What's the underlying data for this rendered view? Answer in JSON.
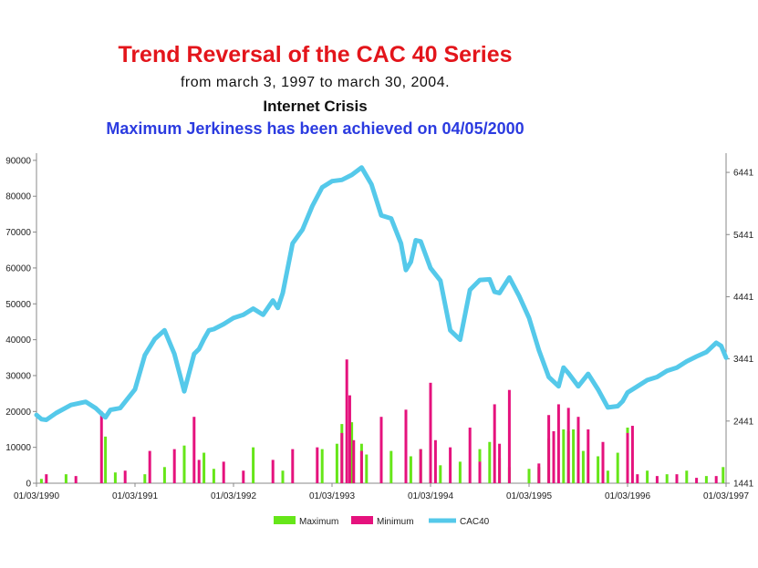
{
  "header": {
    "title": "Trend Reversal of the CAC 40 Series",
    "subtitle": "from   march 3,  1997  to  march 30,  2004.",
    "heading": "Internet Crisis",
    "note": "Maximum  Jerkiness  has been achieved on 04/05/2000"
  },
  "colors": {
    "title": "#e3151b",
    "note": "#2b3be0",
    "maximum": "#66e619",
    "minimum": "#e5127d",
    "cac40": "#55c9ea"
  },
  "chart_data": {
    "type": "line",
    "title": "Trend Reversal of the CAC 40 Series",
    "x_tick_labels": [
      "01/03/1990",
      "01/03/1991",
      "01/03/1992",
      "01/03/1993",
      "01/03/1994",
      "01/03/1995",
      "01/03/1996",
      "01/03/1997"
    ],
    "left_axis": {
      "ticks": [
        0,
        10000,
        20000,
        30000,
        40000,
        50000,
        60000,
        70000,
        80000,
        90000
      ],
      "tick_labels": [
        "0",
        "10000",
        "20000",
        "30000",
        "40000",
        "50000",
        "60000",
        "70000",
        "80000",
        "90000"
      ],
      "ylim": [
        0,
        92000
      ]
    },
    "right_axis": {
      "ticks": [
        1441,
        2441,
        3441,
        4441,
        5441,
        6441
      ],
      "tick_labels": [
        "1441",
        "2441",
        "3441",
        "4441",
        "5441",
        "6441"
      ],
      "ylim": [
        1441,
        6750
      ]
    },
    "legend": {
      "position": "bottom",
      "entries": [
        "Maximum",
        "Minimum",
        "CAC40"
      ]
    },
    "grid": false,
    "series": [
      {
        "name": "CAC40",
        "kind": "line",
        "axis": "right",
        "x": [
          0,
          0.05,
          0.1,
          0.2,
          0.35,
          0.5,
          0.6,
          0.7,
          0.75,
          0.85,
          1.0,
          1.1,
          1.2,
          1.3,
          1.4,
          1.5,
          1.6,
          1.65,
          1.7,
          1.75,
          1.8,
          1.9,
          2.0,
          2.1,
          2.2,
          2.3,
          2.4,
          2.45,
          2.5,
          2.6,
          2.7,
          2.8,
          2.9,
          3.0,
          3.1,
          3.2,
          3.3,
          3.4,
          3.5,
          3.6,
          3.7,
          3.75,
          3.8,
          3.85,
          3.9,
          4.0,
          4.1,
          4.2,
          4.3,
          4.4,
          4.5,
          4.6,
          4.65,
          4.7,
          4.8,
          4.9,
          5.0,
          5.1,
          5.2,
          5.3,
          5.35,
          5.4,
          5.5,
          5.6,
          5.7,
          5.8,
          5.9,
          5.95,
          6.0,
          6.1,
          6.2,
          6.3,
          6.4,
          6.5,
          6.6,
          6.7,
          6.8,
          6.9,
          6.95,
          7.0
        ],
        "y": [
          2540,
          2470,
          2460,
          2570,
          2700,
          2750,
          2650,
          2500,
          2620,
          2650,
          2950,
          3500,
          3760,
          3900,
          3520,
          2920,
          3520,
          3600,
          3760,
          3900,
          3920,
          4000,
          4100,
          4150,
          4250,
          4150,
          4380,
          4260,
          4500,
          5300,
          5520,
          5900,
          6200,
          6300,
          6320,
          6400,
          6520,
          6250,
          5750,
          5700,
          5300,
          4870,
          5000,
          5350,
          5330,
          4900,
          4700,
          3900,
          3750,
          4550,
          4710,
          4720,
          4520,
          4500,
          4750,
          4450,
          4100,
          3580,
          3150,
          3000,
          3300,
          3210,
          3000,
          3200,
          2950,
          2660,
          2680,
          2760,
          2900,
          3000,
          3100,
          3150,
          3250,
          3300,
          3400,
          3480,
          3550,
          3700,
          3650,
          3460
        ]
      },
      {
        "name": "Maximum",
        "kind": "bar",
        "axis": "left",
        "x": [
          0.05,
          0.3,
          0.7,
          0.8,
          1.1,
          1.3,
          1.5,
          1.7,
          1.8,
          2.2,
          2.5,
          2.9,
          3.05,
          3.1,
          3.2,
          3.3,
          3.35,
          3.5,
          3.6,
          3.8,
          3.9,
          4.0,
          4.1,
          4.3,
          4.5,
          4.6,
          4.7,
          4.8,
          5.0,
          5.1,
          5.2,
          5.35,
          5.4,
          5.45,
          5.55,
          5.7,
          5.8,
          5.9,
          6.0,
          6.2,
          6.4,
          6.6,
          6.8,
          6.97
        ],
        "y": [
          1200,
          2500,
          13000,
          3000,
          2500,
          4500,
          10500,
          8500,
          4000,
          10000,
          3500,
          9500,
          11000,
          16500,
          17000,
          11000,
          8000,
          6000,
          9000,
          7500,
          9500,
          18000,
          5000,
          6000,
          9500,
          11500,
          7000,
          4500,
          4000,
          4500,
          12500,
          15000,
          14500,
          15000,
          9000,
          7500,
          3500,
          8500,
          15500,
          3500,
          2500,
          3500,
          2000,
          4500
        ]
      },
      {
        "name": "Minimum",
        "kind": "bar",
        "axis": "left",
        "x": [
          0.1,
          0.4,
          0.66,
          0.9,
          1.15,
          1.4,
          1.6,
          1.65,
          1.9,
          2.1,
          2.4,
          2.6,
          2.85,
          3.1,
          3.15,
          3.18,
          3.22,
          3.3,
          3.5,
          3.75,
          3.9,
          4.0,
          4.05,
          4.2,
          4.4,
          4.5,
          4.65,
          4.7,
          4.8,
          5.1,
          5.2,
          5.25,
          5.3,
          5.4,
          5.5,
          5.6,
          5.75,
          6.0,
          6.05,
          6.1,
          6.3,
          6.5,
          6.7,
          6.9
        ],
        "y": [
          2500,
          2000,
          20000,
          3500,
          9000,
          9500,
          18500,
          6500,
          6000,
          3500,
          6500,
          9500,
          10000,
          14000,
          34500,
          24500,
          12000,
          9000,
          18500,
          20500,
          9500,
          28000,
          12000,
          10000,
          15500,
          6000,
          22000,
          11000,
          26000,
          5500,
          19000,
          14500,
          22000,
          21000,
          18500,
          15000,
          11500,
          14000,
          16000,
          2500,
          2000,
          2500,
          1500,
          2000
        ]
      }
    ]
  }
}
